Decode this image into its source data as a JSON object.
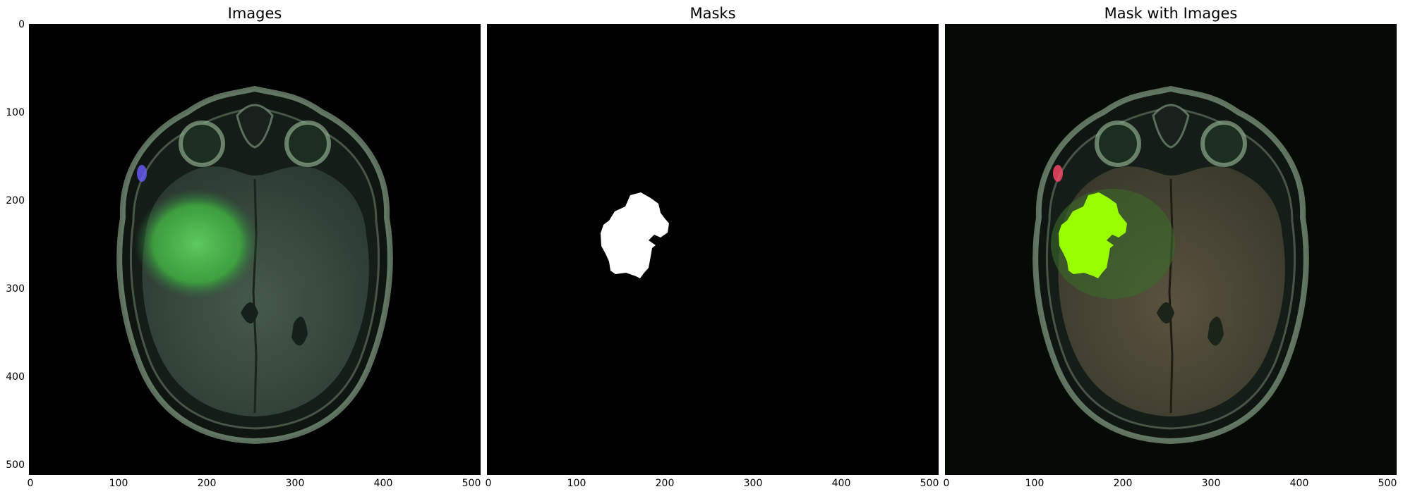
{
  "figure": {
    "panels": [
      {
        "id": "images",
        "title": "Images",
        "content": "brain-mri-axial",
        "x_ticks": [
          "0",
          "100",
          "200",
          "300",
          "400",
          "500"
        ],
        "y_ticks": [
          "0",
          "100",
          "200",
          "300",
          "400",
          "500"
        ],
        "show_y_ticks": true
      },
      {
        "id": "masks",
        "title": "Masks",
        "content": "binary-tumor-mask",
        "x_ticks": [
          "0",
          "100",
          "200",
          "300",
          "400",
          "500"
        ],
        "show_y_ticks": false
      },
      {
        "id": "overlay",
        "title": "Mask with Images",
        "content": "brain-mri-with-mask-overlay",
        "x_ticks": [
          "0",
          "100",
          "200",
          "300",
          "400",
          "500"
        ],
        "show_y_ticks": false
      }
    ],
    "axis_range": [
      0,
      512
    ],
    "colors": {
      "background": "#000000",
      "tissue": "#3b4a40",
      "tumor_highlight": "#3fae3f",
      "mask": "#ffffff",
      "overlay_mask": "#99ff00",
      "skull_rim": "#a8c9a8"
    }
  }
}
